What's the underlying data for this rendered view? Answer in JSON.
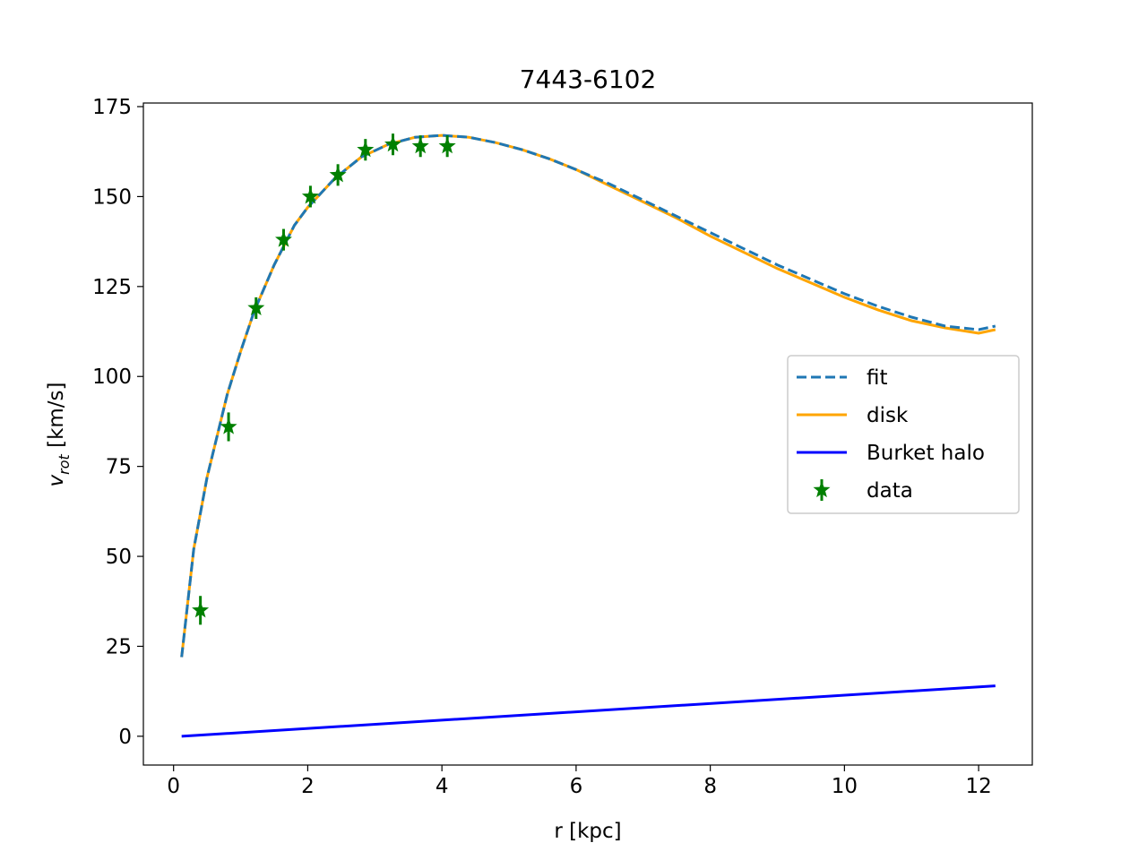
{
  "chart_data": {
    "type": "line",
    "title": "7443-6102",
    "xlabel": "r [kpc]",
    "ylabel_main": "v",
    "ylabel_sub": "rot",
    "ylabel_unit": " [km/s]",
    "xlim": [
      -0.45,
      12.8
    ],
    "ylim": [
      -8,
      176
    ],
    "xticks": [
      0,
      2,
      4,
      6,
      8,
      10,
      12
    ],
    "yticks": [
      0,
      25,
      50,
      75,
      100,
      125,
      150,
      175
    ],
    "legend_position": "center-right",
    "series": [
      {
        "name": "fit",
        "style": "dashed",
        "color": "#1f77b4",
        "x": [
          0.12,
          0.3,
          0.5,
          0.8,
          1.0,
          1.2,
          1.5,
          1.8,
          2.0,
          2.4,
          2.8,
          3.2,
          3.6,
          4.0,
          4.4,
          4.8,
          5.2,
          5.6,
          6.0,
          6.5,
          7.0,
          7.5,
          8.0,
          8.5,
          9.0,
          9.5,
          10.0,
          10.5,
          11.0,
          11.5,
          12.0,
          12.25
        ],
        "y": [
          22,
          52,
          72,
          95,
          107,
          118,
          131,
          142,
          147,
          155,
          161,
          164.5,
          166.5,
          167,
          166.5,
          165,
          163,
          160.5,
          157.5,
          153.5,
          149,
          144.5,
          140,
          135.5,
          131,
          127,
          123,
          119.5,
          116.5,
          114,
          113,
          114
        ]
      },
      {
        "name": "disk",
        "style": "solid",
        "color": "#ffa500",
        "x": [
          0.12,
          0.3,
          0.5,
          0.8,
          1.0,
          1.2,
          1.5,
          1.8,
          2.0,
          2.4,
          2.8,
          3.2,
          3.6,
          4.0,
          4.4,
          4.8,
          5.2,
          5.6,
          6.0,
          6.5,
          7.0,
          7.5,
          8.0,
          8.5,
          9.0,
          9.5,
          10.0,
          10.5,
          11.0,
          11.5,
          12.0,
          12.25
        ],
        "y": [
          22,
          52,
          72,
          95,
          107,
          118,
          131,
          142,
          147,
          155,
          161,
          164.5,
          166.5,
          167,
          166.5,
          165,
          163,
          160.5,
          157.5,
          153,
          148.5,
          144,
          139,
          134.5,
          130,
          126,
          122,
          118.5,
          115.5,
          113.5,
          112,
          113
        ]
      },
      {
        "name": "Burket halo",
        "style": "solid",
        "color": "#0000ff",
        "x": [
          0.12,
          12.25
        ],
        "y": [
          0,
          14
        ]
      }
    ],
    "points": {
      "name": "data",
      "color": "#008000",
      "x": [
        0.4,
        0.82,
        1.23,
        1.64,
        2.04,
        2.45,
        2.86,
        3.27,
        3.68,
        4.08
      ],
      "y": [
        35,
        86,
        119,
        138,
        150,
        156,
        163,
        164.5,
        164,
        164
      ],
      "err": [
        4,
        4,
        3,
        3,
        3,
        3,
        3,
        3,
        3,
        3
      ]
    }
  }
}
